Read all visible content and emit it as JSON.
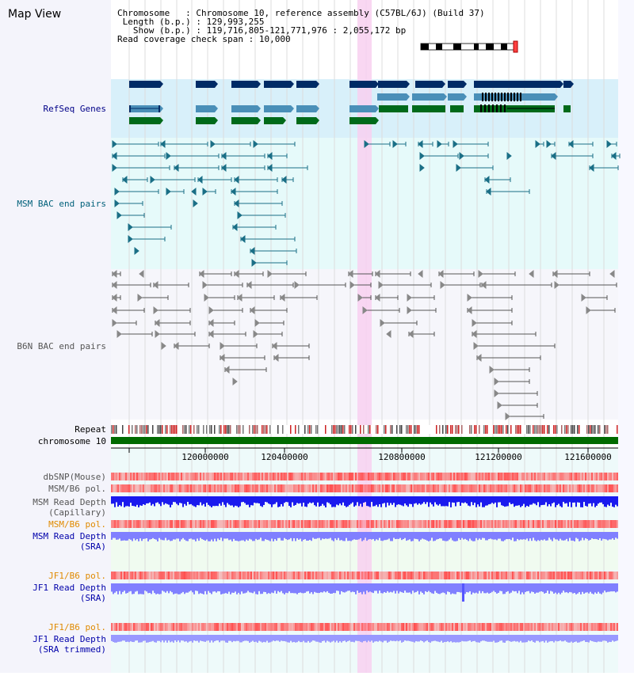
{
  "title": "Map View",
  "header": {
    "chromosome_key": "Chromosome",
    "chromosome_val": "Chromosome 10, reference assembly (C57BL/6J) (Build 37)",
    "length_key": "Length (b.p.)",
    "length_val": "129,993,255",
    "show_key": "Show (b.p.)",
    "show_val": "119,716,805-121,771,976 : 2,055,172 bp",
    "coverage_key": "Read coverage check span",
    "coverage_val": "10,000"
  },
  "tracks": {
    "refseq": "RefSeq Genes",
    "msm_bac": "MSM BAC end pairs",
    "b6n_bac": "B6N BAC end pairs",
    "repeat": "Repeat",
    "chromosome": "chromosome 10",
    "dbsnp": "dbSNP(Mouse)",
    "msm_b6_pol_1": "MSM/B6 pol.",
    "msm_read_depth_cap_1": "MSM Read Depth",
    "msm_read_depth_cap_2": "(Capillary)",
    "msm_b6_pol_2": "MSM/B6 pol.",
    "msm_read_depth_sra_1": "MSM Read Depth",
    "msm_read_depth_sra_2": "(SRA)",
    "jf1_b6_pol_1": "JF1/B6 pol.",
    "jf1_read_depth_sra_1": "JF1 Read Depth",
    "jf1_read_depth_sra_2": "(SRA)",
    "jf1_b6_pol_2": "JF1/B6 pol.",
    "jf1_read_depth_trim_1": "JF1 Read Depth",
    "jf1_read_depth_trim_2": "(SRA trimmed)"
  },
  "axis": {
    "ticks": [
      "120000000",
      "120400000",
      "120800000",
      "121200000",
      "121600000"
    ]
  },
  "colors": {
    "refseq_dark": "#002b66",
    "refseq_mid": "#4a8fb8",
    "refseq_green": "#006a1a",
    "refseq_bg": "#d8f0fa",
    "msm_bg": "#e6fafa",
    "msm_line": "#1a6f86",
    "b6n_line": "#555555",
    "highlight": "#f8d0f0",
    "snp_red": "#ff5050",
    "depth_blue": "#1a1aee",
    "depth_lightblue": "#8080ff"
  }
}
